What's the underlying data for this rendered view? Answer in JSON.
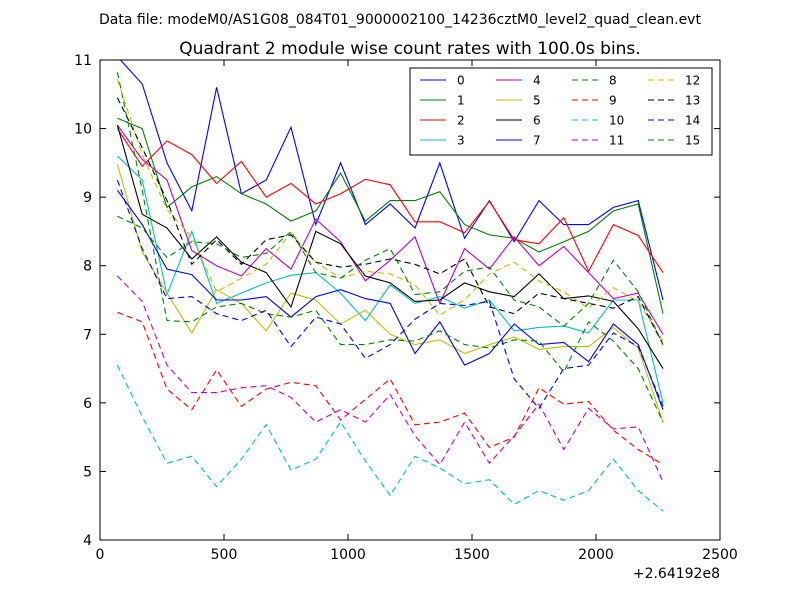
{
  "chart_data": {
    "type": "line",
    "suptitle": "Data file: modeM0/AS1G08_084T01_9000002100_14236cztM0_level2_quad_clean.evt",
    "title": "Quadrant 2 module wise count rates with 100.0s bins.",
    "xlabel": "",
    "ylabel": "",
    "x_offset_label": "+2.64192e8",
    "xlim": [
      0,
      2500
    ],
    "ylim": [
      4,
      11
    ],
    "xticks": [
      0,
      500,
      1000,
      1500,
      2000,
      2500
    ],
    "yticks": [
      4,
      5,
      6,
      7,
      8,
      9,
      10,
      11
    ],
    "grid": false,
    "legend_placement": "upper-right",
    "legend_columns": 4,
    "x": [
      70,
      170,
      270,
      370,
      470,
      570,
      670,
      770,
      870,
      970,
      1070,
      1170,
      1270,
      1370,
      1470,
      1570,
      1670,
      1770,
      1870,
      1970,
      2070,
      2170,
      2270
    ],
    "series": [
      {
        "name": "0",
        "color": "#0000ff",
        "dash": "solid",
        "values": [
          11.05,
          10.65,
          9.5,
          8.8,
          10.6,
          9.05,
          9.25,
          10.02,
          8.6,
          9.5,
          8.6,
          8.9,
          8.55,
          9.5,
          8.4,
          8.95,
          8.35,
          8.95,
          8.6,
          8.6,
          8.85,
          8.95,
          7.5
        ]
      },
      {
        "name": "1",
        "color": "#008000",
        "dash": "solid",
        "values": [
          10.15,
          10.0,
          8.85,
          9.15,
          9.3,
          9.05,
          8.9,
          8.65,
          8.8,
          9.35,
          8.65,
          8.95,
          8.95,
          9.08,
          8.6,
          8.45,
          8.4,
          8.2,
          8.35,
          8.5,
          8.8,
          8.9,
          7.3
        ]
      },
      {
        "name": "2",
        "color": "#ff0000",
        "dash": "solid",
        "values": [
          10.0,
          9.45,
          9.82,
          9.62,
          9.2,
          9.52,
          9.0,
          9.2,
          8.9,
          9.05,
          9.26,
          9.18,
          8.64,
          8.64,
          8.48,
          8.94,
          8.38,
          8.32,
          8.7,
          7.92,
          8.6,
          8.44,
          7.9
        ]
      },
      {
        "name": "3",
        "color": "#00bfbf",
        "dash": "solid",
        "values": [
          9.6,
          9.25,
          7.58,
          8.5,
          7.45,
          7.6,
          7.75,
          7.86,
          7.9,
          7.6,
          7.2,
          7.72,
          7.45,
          7.55,
          7.38,
          7.5,
          7.05,
          7.1,
          7.12,
          7.02,
          7.5,
          7.5,
          6.0
        ]
      },
      {
        "name": "4",
        "color": "#bf00bf",
        "dash": "solid",
        "values": [
          10.05,
          9.55,
          9.25,
          8.22,
          8.0,
          7.85,
          8.25,
          7.95,
          8.68,
          8.35,
          7.78,
          8.08,
          8.42,
          7.45,
          8.25,
          7.95,
          8.42,
          8.0,
          8.28,
          7.9,
          7.52,
          7.6,
          7.0
        ]
      },
      {
        "name": "5",
        "color": "#bfbf00",
        "dash": "solid",
        "values": [
          9.48,
          8.2,
          7.6,
          7.02,
          7.65,
          7.45,
          7.05,
          7.6,
          7.5,
          7.15,
          7.35,
          7.0,
          6.85,
          6.92,
          6.72,
          6.85,
          6.96,
          6.78,
          6.82,
          6.82,
          7.1,
          6.8,
          5.72
        ]
      },
      {
        "name": "6",
        "color": "#000000",
        "dash": "solid",
        "values": [
          10.05,
          8.75,
          8.55,
          8.1,
          8.42,
          8.05,
          7.9,
          7.4,
          8.5,
          8.32,
          7.85,
          7.75,
          7.48,
          7.5,
          7.75,
          7.62,
          7.55,
          7.88,
          7.52,
          7.56,
          7.48,
          7.08,
          6.5
        ]
      },
      {
        "name": "7",
        "color": "#0000ff",
        "dash": "solid",
        "values": [
          9.1,
          8.6,
          7.95,
          7.87,
          7.5,
          7.5,
          7.55,
          7.25,
          7.55,
          7.65,
          7.52,
          7.45,
          6.72,
          7.18,
          6.55,
          6.72,
          7.15,
          6.85,
          6.88,
          6.6,
          7.15,
          6.85,
          5.9
        ]
      },
      {
        "name": "8",
        "color": "#008000",
        "dash": "dashed",
        "values": [
          10.82,
          9.1,
          7.2,
          7.18,
          7.4,
          7.45,
          7.3,
          7.25,
          7.35,
          6.85,
          6.85,
          6.92,
          6.9,
          7.05,
          6.85,
          6.8,
          6.92,
          6.9,
          6.45,
          7.18,
          6.9,
          6.5,
          5.72
        ]
      },
      {
        "name": "9",
        "color": "#ff0000",
        "dash": "dashed",
        "values": [
          7.32,
          7.18,
          6.2,
          5.9,
          6.48,
          5.95,
          6.2,
          6.3,
          6.25,
          5.75,
          6.05,
          6.35,
          5.68,
          5.72,
          5.85,
          5.35,
          5.5,
          6.22,
          5.98,
          6.02,
          5.6,
          5.32,
          5.1
        ]
      },
      {
        "name": "10",
        "color": "#00bfbf",
        "dash": "dashed",
        "values": [
          6.55,
          5.8,
          5.12,
          5.22,
          4.78,
          5.18,
          5.68,
          5.02,
          5.18,
          5.72,
          5.15,
          4.65,
          5.22,
          5.05,
          4.82,
          4.88,
          4.52,
          4.72,
          4.58,
          4.72,
          5.18,
          4.72,
          4.42
        ]
      },
      {
        "name": "11",
        "color": "#bf00bf",
        "dash": "dashed",
        "values": [
          7.85,
          7.48,
          6.55,
          6.15,
          6.15,
          6.22,
          6.25,
          6.08,
          5.72,
          5.9,
          5.72,
          6.12,
          5.52,
          5.1,
          5.72,
          5.12,
          5.52,
          5.98,
          5.32,
          5.92,
          5.62,
          5.65,
          4.85
        ]
      },
      {
        "name": "12",
        "color": "#bfbf00",
        "dash": "dashed",
        "values": [
          10.72,
          9.62,
          8.82,
          8.42,
          7.62,
          7.82,
          8.02,
          8.48,
          8.05,
          7.82,
          7.92,
          7.88,
          7.72,
          7.28,
          7.5,
          7.88,
          8.05,
          7.78,
          7.62,
          7.38,
          7.68,
          7.48,
          6.9
        ]
      },
      {
        "name": "13",
        "color": "#000000",
        "dash": "dashed",
        "values": [
          10.45,
          9.72,
          8.95,
          8.02,
          8.38,
          8.02,
          8.38,
          8.45,
          8.05,
          7.98,
          8.02,
          8.1,
          8.02,
          7.88,
          8.1,
          7.4,
          7.3,
          7.6,
          7.52,
          7.45,
          7.38,
          7.55,
          6.85
        ]
      },
      {
        "name": "14",
        "color": "#0000ff",
        "dash": "dashed",
        "values": [
          9.25,
          8.25,
          7.52,
          7.55,
          7.3,
          7.2,
          7.35,
          6.82,
          7.25,
          7.15,
          6.65,
          6.85,
          7.22,
          7.45,
          7.42,
          7.48,
          6.35,
          5.92,
          6.5,
          6.55,
          7.02,
          6.82,
          5.95
        ]
      },
      {
        "name": "15",
        "color": "#008000",
        "dash": "dashed",
        "values": [
          8.72,
          8.55,
          8.12,
          8.35,
          8.32,
          8.12,
          8.18,
          8.5,
          7.9,
          7.82,
          8.08,
          8.25,
          7.58,
          7.62,
          7.92,
          7.98,
          7.5,
          7.4,
          7.12,
          7.45,
          8.08,
          7.62,
          6.85
        ]
      }
    ]
  }
}
